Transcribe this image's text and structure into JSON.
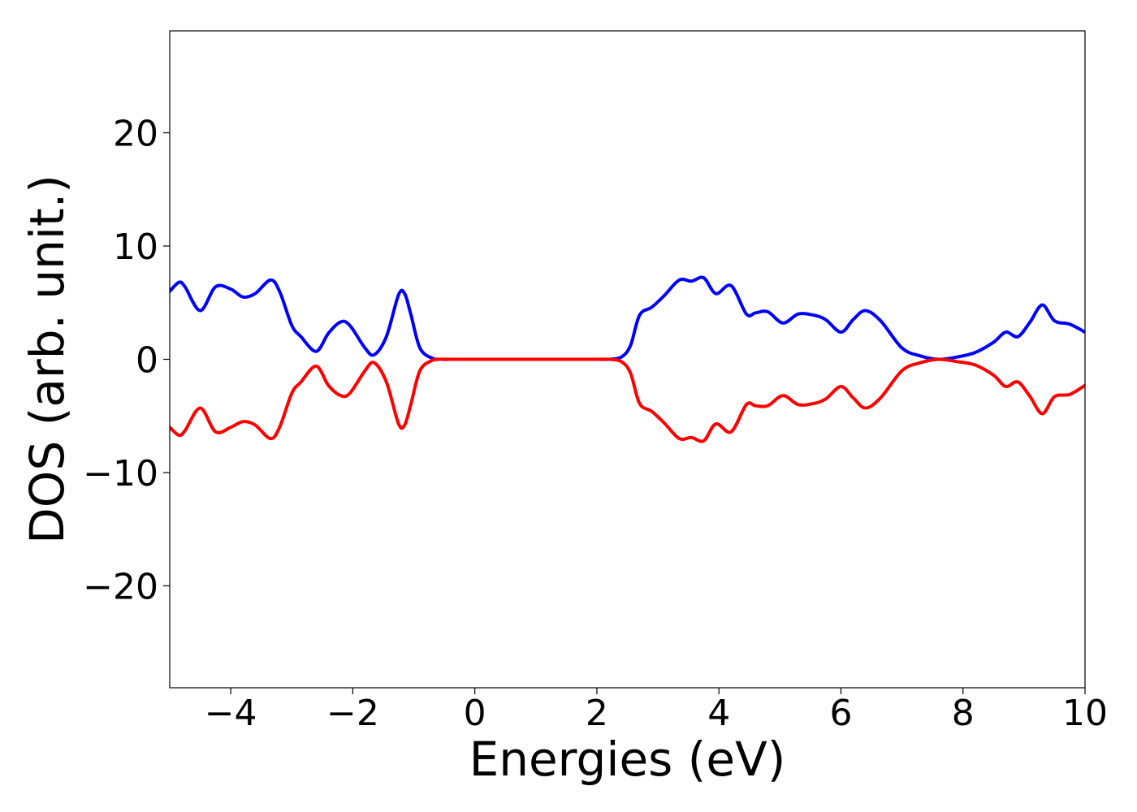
{
  "chart_data": {
    "type": "line",
    "title": "",
    "xlabel": "Energies (eV)",
    "ylabel": "DOS (arb. unit.)",
    "xlim": [
      -5,
      10
    ],
    "ylim": [
      -29,
      29
    ],
    "grid": false,
    "xticks": [
      -4,
      -2,
      0,
      2,
      4,
      6,
      8,
      10
    ],
    "xtick_labels": [
      "−4",
      "−2",
      "0",
      "2",
      "4",
      "6",
      "8",
      "10"
    ],
    "yticks": [
      20,
      10,
      0,
      -10,
      -20
    ],
    "ytick_labels": [
      "20",
      "10",
      "0",
      "−10",
      "−20"
    ],
    "series": [
      {
        "color": "#0000ff",
        "x": [
          -5.0,
          -4.85,
          -4.75,
          -4.5,
          -4.25,
          -4.0,
          -3.8,
          -3.6,
          -3.35,
          -3.2,
          -3.0,
          -2.85,
          -2.6,
          -2.4,
          -2.2,
          -2.05,
          -1.8,
          -1.65,
          -1.45,
          -1.25,
          -1.15,
          -1.05,
          -0.9,
          -0.7,
          -0.55,
          -0.3,
          0.0,
          0.5,
          1.0,
          1.5,
          2.0,
          2.2,
          2.4,
          2.55,
          2.7,
          2.9,
          3.1,
          3.35,
          3.55,
          3.75,
          3.95,
          4.2,
          4.45,
          4.6,
          4.8,
          5.05,
          5.3,
          5.55,
          5.75,
          6.0,
          6.2,
          6.4,
          6.65,
          7.0,
          7.3,
          7.6,
          7.9,
          8.2,
          8.5,
          8.7,
          8.9,
          9.1,
          9.3,
          9.5,
          9.75,
          10.0
        ],
        "y": [
          6.0,
          6.8,
          6.4,
          4.3,
          6.4,
          6.2,
          5.5,
          5.8,
          7.0,
          6.0,
          3.0,
          2.0,
          0.7,
          2.3,
          3.3,
          3.0,
          1.0,
          0.4,
          2.0,
          5.7,
          5.8,
          4.0,
          1.0,
          0.1,
          0.0,
          0.0,
          0.0,
          0.0,
          0.0,
          0.0,
          0.0,
          0.0,
          0.2,
          1.2,
          3.9,
          4.6,
          5.6,
          7.0,
          6.9,
          7.2,
          5.8,
          6.5,
          4.0,
          4.1,
          4.2,
          3.2,
          4.0,
          3.9,
          3.5,
          2.4,
          3.5,
          4.3,
          3.4,
          1.0,
          0.3,
          0.0,
          0.2,
          0.6,
          1.5,
          2.4,
          2.0,
          3.3,
          4.8,
          3.4,
          3.1,
          2.4
        ]
      },
      {
        "color": "#ff0000",
        "x": [
          -5.0,
          -4.85,
          -4.75,
          -4.5,
          -4.25,
          -4.0,
          -3.8,
          -3.6,
          -3.35,
          -3.2,
          -3.0,
          -2.85,
          -2.6,
          -2.4,
          -2.2,
          -2.05,
          -1.8,
          -1.65,
          -1.45,
          -1.25,
          -1.15,
          -1.05,
          -0.9,
          -0.7,
          -0.55,
          -0.3,
          0.0,
          0.5,
          1.0,
          1.5,
          2.0,
          2.2,
          2.4,
          2.55,
          2.7,
          2.9,
          3.1,
          3.35,
          3.55,
          3.75,
          3.95,
          4.2,
          4.45,
          4.6,
          4.8,
          5.05,
          5.3,
          5.55,
          5.75,
          6.0,
          6.2,
          6.4,
          6.65,
          7.0,
          7.3,
          7.6,
          7.9,
          8.2,
          8.5,
          8.7,
          8.9,
          9.1,
          9.3,
          9.5,
          9.75,
          10.0
        ],
        "y": [
          -6.0,
          -6.7,
          -6.3,
          -4.3,
          -6.4,
          -6.0,
          -5.5,
          -5.8,
          -7.0,
          -6.0,
          -3.0,
          -2.0,
          -0.6,
          -2.3,
          -3.2,
          -3.0,
          -1.0,
          -0.3,
          -2.0,
          -5.7,
          -5.8,
          -4.0,
          -1.0,
          -0.1,
          0.0,
          0.0,
          0.0,
          0.0,
          0.0,
          0.0,
          0.0,
          0.0,
          -0.2,
          -1.2,
          -3.9,
          -4.6,
          -5.6,
          -7.0,
          -6.9,
          -7.2,
          -5.7,
          -6.4,
          -4.0,
          -4.1,
          -4.1,
          -3.2,
          -4.0,
          -3.9,
          -3.5,
          -2.4,
          -3.4,
          -4.3,
          -3.4,
          -1.0,
          -0.3,
          0.0,
          -0.2,
          -0.5,
          -1.4,
          -2.4,
          -2.0,
          -3.3,
          -4.8,
          -3.3,
          -3.1,
          -2.3
        ]
      }
    ]
  }
}
